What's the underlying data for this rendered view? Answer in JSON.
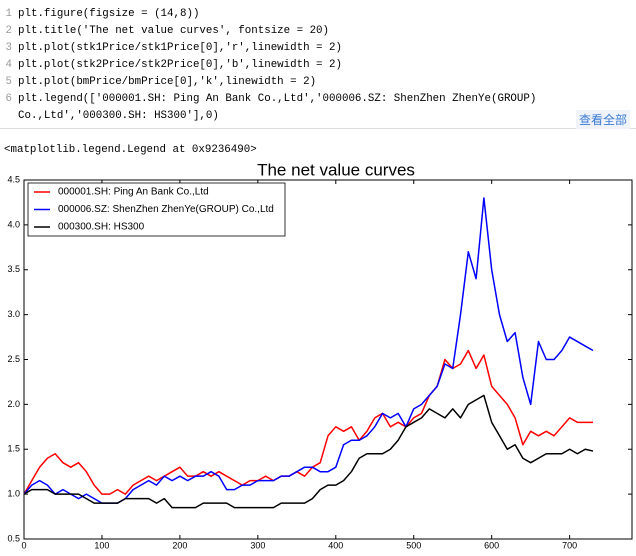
{
  "code": {
    "line_numbers": [
      1,
      2,
      3,
      4,
      5,
      6
    ],
    "lines": [
      "plt.figure(figsize = (14,8))",
      "plt.title('The net value curves', fontsize = 20)",
      "plt.plot(stk1Price/stk1Price[0],'r',linewidth = 2)",
      "plt.plot(stk2Price/stk2Price[0],'b',linewidth = 2)",
      "plt.plot(bmPrice/bmPrice[0],'k',linewidth = 2)",
      "plt.legend(['000001.SH: Ping An Bank Co.,Ltd','000006.SZ: ShenZhen ZhenYe(GROUP) Co.,Ltd','000300.SH: HS300'],0)"
    ],
    "button": "查看全部"
  },
  "output": "<matplotlib.legend.Legend at 0x9236490>",
  "chart_data": {
    "type": "line",
    "title": "The net value curves",
    "x": [
      0,
      10,
      20,
      30,
      40,
      50,
      60,
      70,
      80,
      90,
      100,
      110,
      120,
      130,
      140,
      150,
      160,
      170,
      180,
      190,
      200,
      210,
      220,
      230,
      240,
      250,
      260,
      270,
      280,
      290,
      300,
      310,
      320,
      330,
      340,
      350,
      360,
      370,
      380,
      390,
      400,
      410,
      420,
      430,
      440,
      450,
      460,
      470,
      480,
      490,
      500,
      510,
      520,
      530,
      540,
      550,
      560,
      570,
      580,
      590,
      600,
      610,
      620,
      630,
      640,
      650,
      660,
      670,
      680,
      690,
      700,
      710,
      720,
      730
    ],
    "series": [
      {
        "name": "000001.SH: Ping An Bank Co.,Ltd",
        "color": "#ff0000",
        "values": [
          1.0,
          1.15,
          1.3,
          1.4,
          1.45,
          1.35,
          1.3,
          1.35,
          1.25,
          1.1,
          1.0,
          1.0,
          1.05,
          1.0,
          1.1,
          1.15,
          1.2,
          1.15,
          1.2,
          1.25,
          1.3,
          1.2,
          1.2,
          1.25,
          1.2,
          1.25,
          1.2,
          1.15,
          1.1,
          1.15,
          1.15,
          1.2,
          1.15,
          1.2,
          1.2,
          1.25,
          1.2,
          1.3,
          1.35,
          1.65,
          1.75,
          1.7,
          1.75,
          1.6,
          1.7,
          1.85,
          1.9,
          1.75,
          1.8,
          1.75,
          1.85,
          1.9,
          2.1,
          2.2,
          2.5,
          2.4,
          2.45,
          2.6,
          2.4,
          2.55,
          2.2,
          2.1,
          2.0,
          1.85,
          1.55,
          1.7,
          1.65,
          1.7,
          1.65,
          1.75,
          1.85,
          1.8,
          1.8,
          1.8
        ]
      },
      {
        "name": "000006.SZ: ShenZhen ZhenYe(GROUP) Co.,Ltd",
        "color": "#0000ff",
        "values": [
          1.0,
          1.1,
          1.15,
          1.1,
          1.0,
          1.05,
          1.0,
          0.95,
          1.0,
          0.95,
          0.9,
          0.9,
          0.9,
          0.95,
          1.05,
          1.1,
          1.15,
          1.1,
          1.2,
          1.15,
          1.2,
          1.15,
          1.2,
          1.2,
          1.25,
          1.2,
          1.05,
          1.05,
          1.1,
          1.1,
          1.15,
          1.15,
          1.15,
          1.2,
          1.2,
          1.25,
          1.3,
          1.3,
          1.25,
          1.25,
          1.3,
          1.55,
          1.6,
          1.6,
          1.65,
          1.75,
          1.9,
          1.85,
          1.9,
          1.75,
          1.95,
          2.0,
          2.1,
          2.2,
          2.45,
          2.4,
          3.0,
          3.7,
          3.4,
          4.3,
          3.5,
          3.0,
          2.7,
          2.8,
          2.3,
          2.0,
          2.7,
          2.5,
          2.5,
          2.6,
          2.75,
          2.7,
          2.65,
          2.6
        ]
      },
      {
        "name": "000300.SH: HS300",
        "color": "#000000",
        "values": [
          1.0,
          1.05,
          1.05,
          1.05,
          1.0,
          1.0,
          1.0,
          1.0,
          0.95,
          0.9,
          0.9,
          0.9,
          0.9,
          0.95,
          0.95,
          0.95,
          0.95,
          0.9,
          0.95,
          0.85,
          0.85,
          0.85,
          0.85,
          0.9,
          0.9,
          0.9,
          0.9,
          0.85,
          0.85,
          0.85,
          0.85,
          0.85,
          0.85,
          0.9,
          0.9,
          0.9,
          0.9,
          0.95,
          1.05,
          1.1,
          1.1,
          1.15,
          1.25,
          1.4,
          1.45,
          1.45,
          1.45,
          1.5,
          1.6,
          1.75,
          1.8,
          1.85,
          1.95,
          1.9,
          1.85,
          1.95,
          1.85,
          2.0,
          2.05,
          2.1,
          1.8,
          1.65,
          1.5,
          1.55,
          1.4,
          1.35,
          1.4,
          1.45,
          1.45,
          1.45,
          1.5,
          1.45,
          1.5,
          1.48
        ]
      }
    ],
    "xlim": [
      0,
      780
    ],
    "xticks": [
      0,
      100,
      200,
      300,
      400,
      500,
      600,
      700
    ],
    "ylim": [
      0.5,
      4.5
    ],
    "yticks": [
      0.5,
      {
        "value": 1.0,
        "label": "1.0"
      },
      1.5,
      {
        "value": 2.0,
        "label": "2.0"
      },
      2.5,
      {
        "value": 3.0,
        "label": "3.0"
      },
      3.5,
      {
        "value": 4.0,
        "label": "4.0"
      },
      4.5
    ],
    "grid": false,
    "legend_loc": "upper left",
    "linewidth": 2
  }
}
